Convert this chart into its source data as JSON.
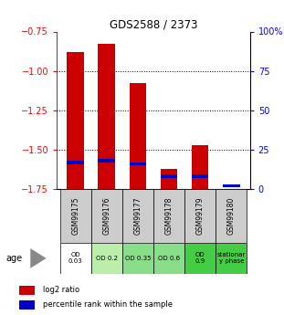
{
  "title": "GDS2588 / 2373",
  "samples": [
    "GSM99175",
    "GSM99176",
    "GSM99177",
    "GSM99178",
    "GSM99179",
    "GSM99180"
  ],
  "log2_ratio": [
    -0.88,
    -0.83,
    -1.08,
    -1.62,
    -1.47,
    -1.75
  ],
  "percentile_rank": [
    17,
    18,
    16,
    8,
    8,
    2
  ],
  "age_labels": [
    "OD\n0.03",
    "OD 0.2",
    "OD 0.35",
    "OD 0.6",
    "OD\n0.9",
    "stationar\ny phase"
  ],
  "age_colors": [
    "#ffffff",
    "#bbeeaa",
    "#88dd88",
    "#88dd88",
    "#44cc44",
    "#44cc44"
  ],
  "ylim_left": [
    -1.75,
    -0.75
  ],
  "ylim_right": [
    0,
    100
  ],
  "yticks_left": [
    -1.75,
    -1.5,
    -1.25,
    -1.0,
    -0.75
  ],
  "yticks_right": [
    0,
    25,
    50,
    75,
    100
  ],
  "bar_color": "#cc0000",
  "marker_color": "#0000cc",
  "bg_color": "#ffffff",
  "sample_bg": "#cccccc",
  "bar_width": 0.55,
  "legend_red": "log2 ratio",
  "legend_blue": "percentile rank within the sample"
}
